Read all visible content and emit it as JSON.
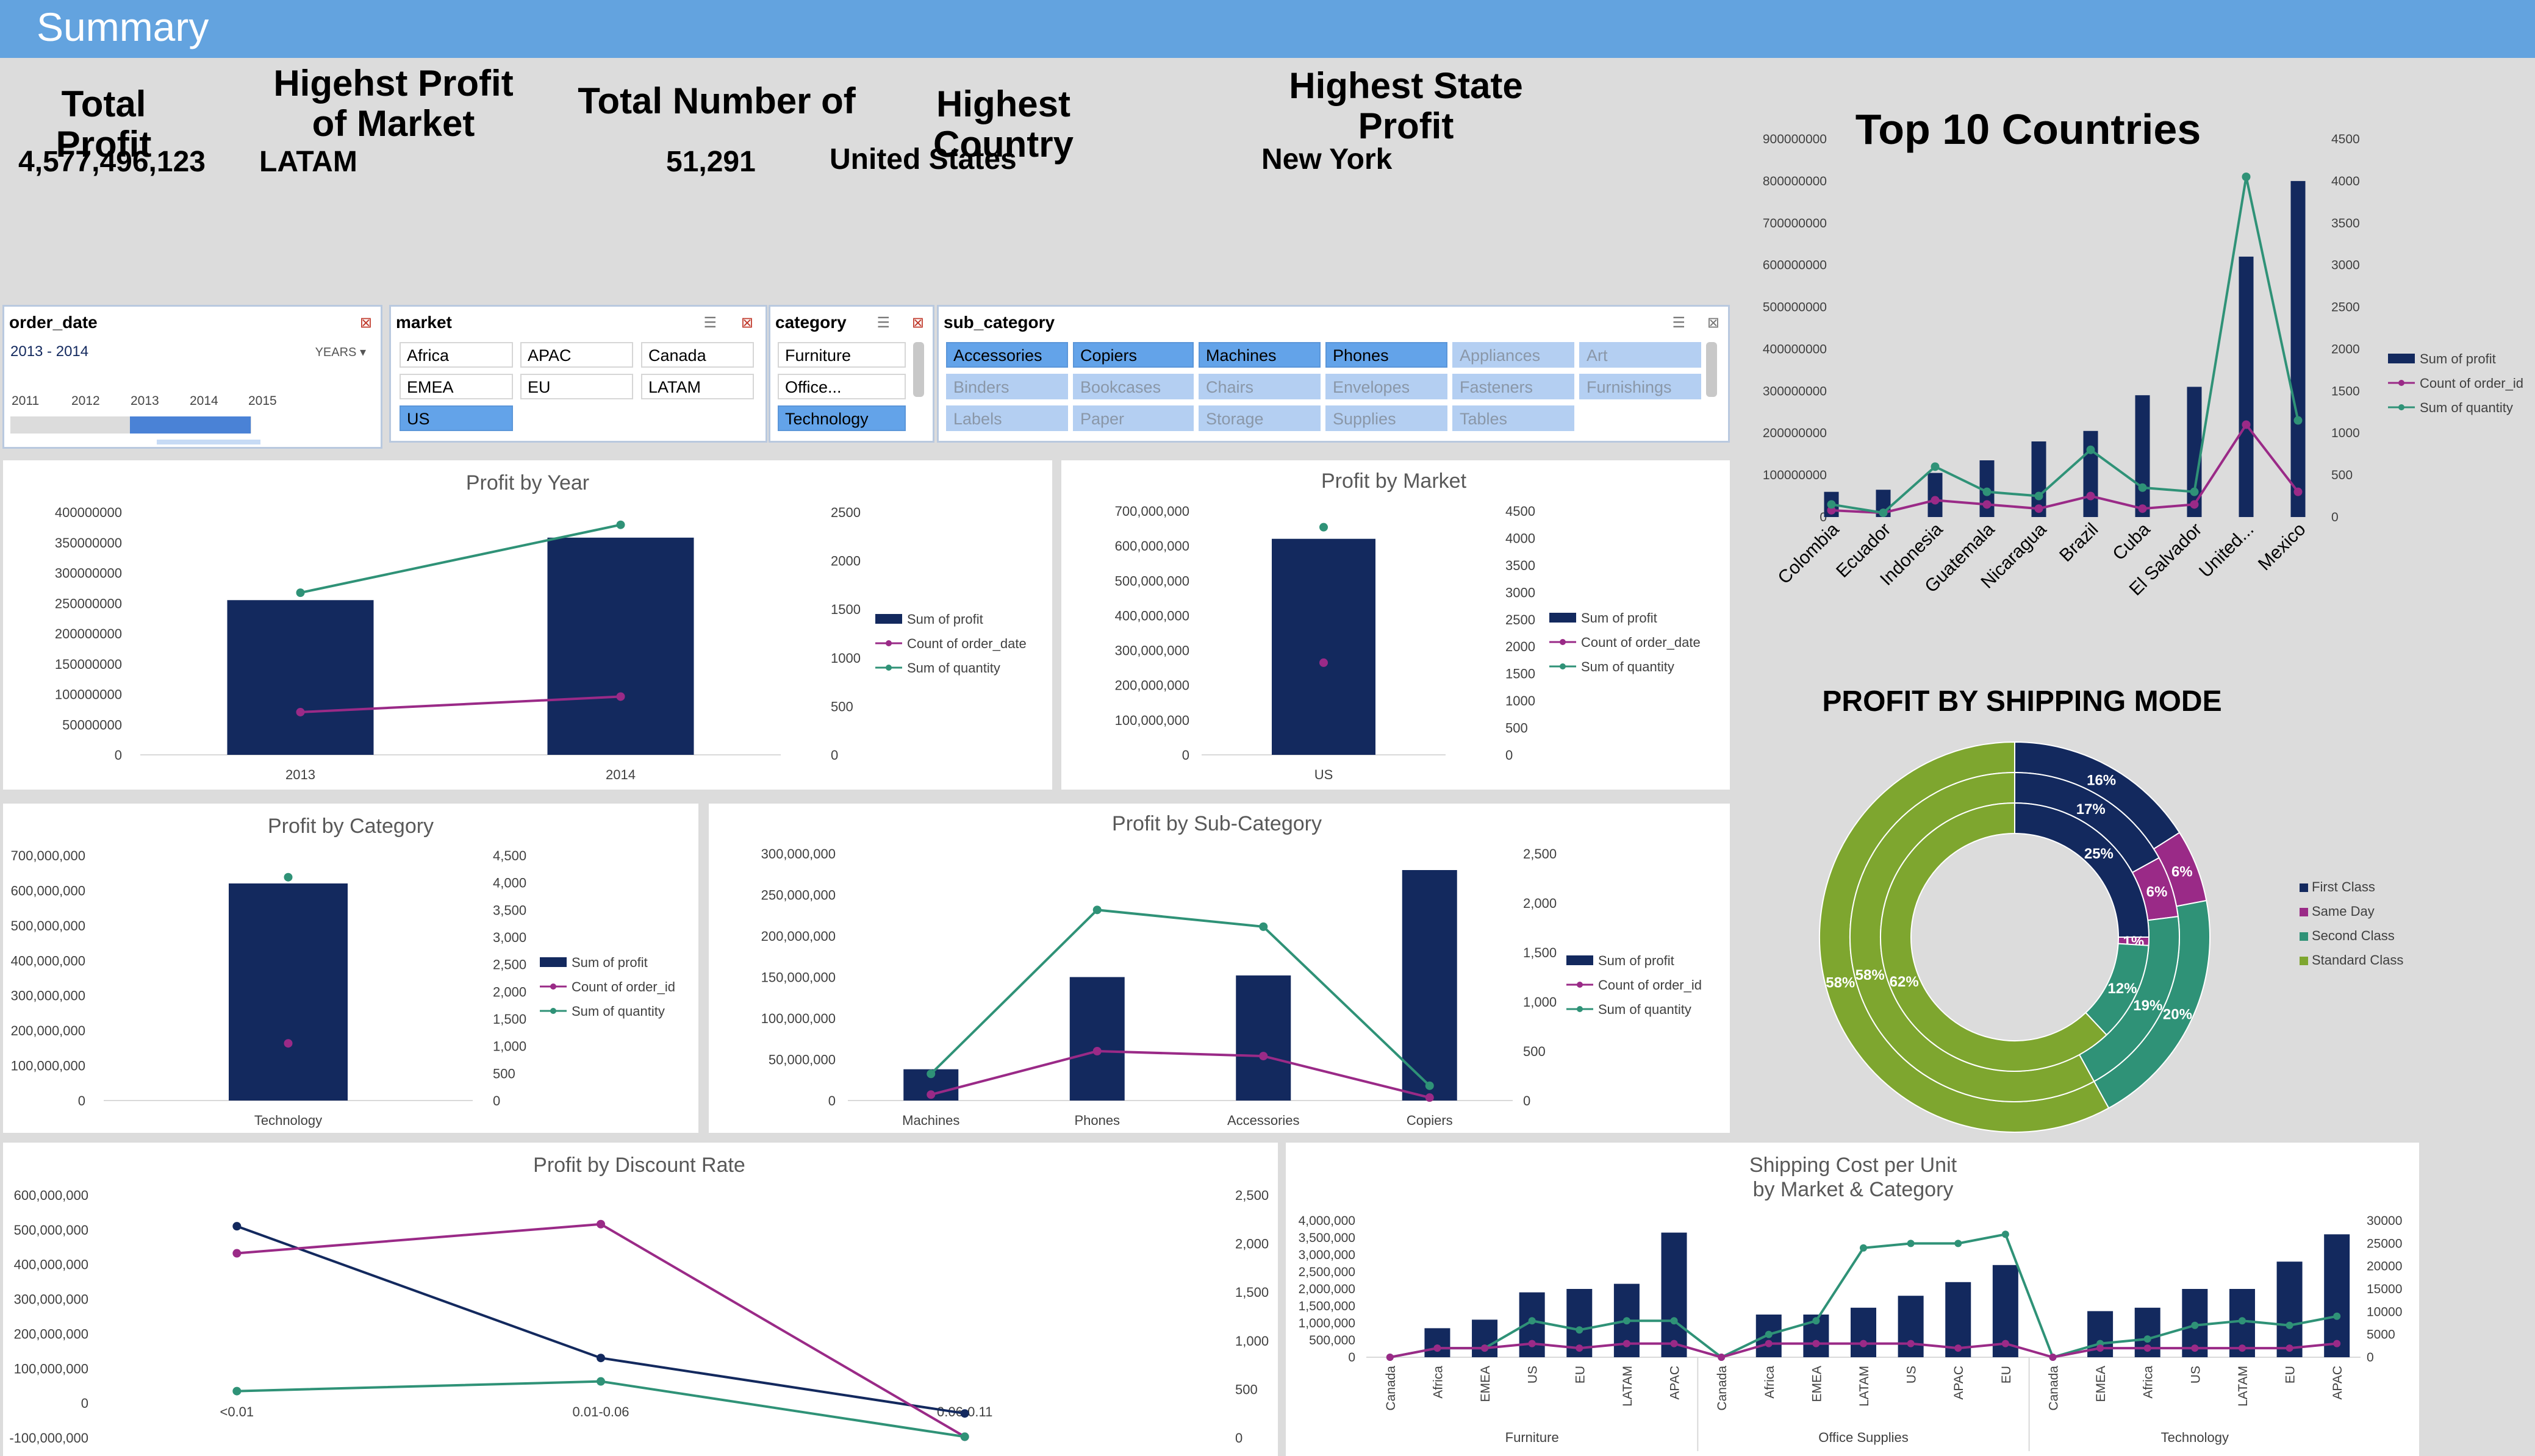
{
  "header": {
    "title": "Summary"
  },
  "kpis": {
    "total_profit_label": "Total Profit",
    "total_profit_value": "4,577,496,123",
    "market_label_1": "Higehst Profit",
    "market_label_2": "of Market",
    "market_value": "LATAM",
    "count_label": "Total Number of",
    "count_value": "51,291",
    "country_label": "Highest Country",
    "country_value": "United States",
    "state_label_1": "Highest State",
    "state_label_2": "Profit",
    "state_value": "New York"
  },
  "slicers": {
    "order_date": {
      "title": "order_date",
      "range": "2013 - 2014",
      "unit": "YEARS",
      "years": [
        "2011",
        "2012",
        "2013",
        "2014",
        "2015"
      ]
    },
    "market": {
      "title": "market",
      "items": [
        "Africa",
        "APAC",
        "Canada",
        "EMEA",
        "EU",
        "LATAM",
        "US"
      ],
      "selected": "US"
    },
    "category": {
      "title": "category",
      "items": [
        "Furniture",
        "Office...",
        "Technology"
      ],
      "selected": "Technology"
    },
    "sub_category": {
      "title": "sub_category",
      "items": [
        "Accessories",
        "Copiers",
        "Machines",
        "Phones",
        "Appliances",
        "Art",
        "Binders",
        "Bookcases",
        "Chairs",
        "Envelopes",
        "Fasteners",
        "Furnishings",
        "Labels",
        "Paper",
        "Storage",
        "Supplies",
        "Tables"
      ],
      "selected": [
        "Accessories",
        "Copiers",
        "Machines",
        "Phones"
      ]
    }
  },
  "legend_labels": {
    "profit": "Sum of profit",
    "count_date": "Count of order_date",
    "count_id": "Count of order_id",
    "quantity": "Sum of quantity"
  },
  "colors": {
    "profit": "#13295e",
    "count": "#9a2a87",
    "quantity": "#2f9277",
    "first": "#13295e",
    "same": "#9a2a87",
    "second": "#2f9277",
    "standard": "#7ea62f"
  },
  "chart_data": [
    {
      "id": "profit_by_year",
      "type": "bar",
      "title": "Profit by Year",
      "categories": [
        "2013",
        "2014"
      ],
      "series": [
        {
          "name": "Sum of profit",
          "values": [
            255000000,
            358000000
          ]
        },
        {
          "name": "Count of order_date",
          "values": [
            440,
            600
          ]
        },
        {
          "name": "Sum of quantity",
          "values": [
            1670,
            2370
          ]
        }
      ],
      "y_ticks": [
        "400000000",
        "350000000",
        "300000000",
        "250000000",
        "200000000",
        "150000000",
        "100000000",
        "50000000",
        "0"
      ],
      "y2_ticks": [
        "2500",
        "2000",
        "1500",
        "1000",
        "500",
        "0"
      ]
    },
    {
      "id": "profit_by_market",
      "type": "bar",
      "title": "Profit by Market",
      "categories": [
        "US"
      ],
      "series": [
        {
          "name": "Sum of profit",
          "values": [
            620000000
          ]
        },
        {
          "name": "Count of order_date",
          "values": [
            1700
          ]
        },
        {
          "name": "Sum of quantity",
          "values": [
            4200
          ]
        }
      ],
      "y_ticks": [
        "700,000,000",
        "600,000,000",
        "500,000,000",
        "400,000,000",
        "300,000,000",
        "200,000,000",
        "100,000,000",
        "0"
      ],
      "y2_ticks": [
        "4500",
        "4000",
        "3500",
        "3000",
        "2500",
        "2000",
        "1500",
        "1000",
        "500",
        "0"
      ]
    },
    {
      "id": "profit_by_category",
      "type": "bar",
      "title": "Profit by Category",
      "categories": [
        "Technology"
      ],
      "series": [
        {
          "name": "Sum of profit",
          "values": [
            620000000
          ]
        },
        {
          "name": "Count of order_id",
          "values": [
            1050
          ]
        },
        {
          "name": "Sum of quantity",
          "values": [
            4100
          ]
        }
      ],
      "y_ticks": [
        "700,000,000",
        "600,000,000",
        "500,000,000",
        "400,000,000",
        "300,000,000",
        "200,000,000",
        "100,000,000",
        "0"
      ],
      "y2_ticks": [
        "4,500",
        "4,000",
        "3,500",
        "3,000",
        "2,500",
        "2,000",
        "1,500",
        "1,000",
        "500",
        "0"
      ]
    },
    {
      "id": "profit_by_subcategory",
      "type": "bar",
      "title": "Profit by Sub-Category",
      "categories": [
        "Machines",
        "Phones",
        "Accessories",
        "Copiers"
      ],
      "series": [
        {
          "name": "Sum of profit",
          "values": [
            38000000,
            150000000,
            152000000,
            280000000
          ]
        },
        {
          "name": "Count of order_id",
          "values": [
            60,
            500,
            450,
            30
          ]
        },
        {
          "name": "Sum of quantity",
          "values": [
            270,
            1930,
            1760,
            150
          ]
        }
      ],
      "y_ticks": [
        "300,000,000",
        "250,000,000",
        "200,000,000",
        "150,000,000",
        "100,000,000",
        "50,000,000",
        "0"
      ],
      "y2_ticks": [
        "2,500",
        "2,000",
        "1,500",
        "1,000",
        "500",
        "0"
      ]
    },
    {
      "id": "profit_by_discount",
      "type": "line",
      "title": "Profit by Discount Rate",
      "categories": [
        "<0.01",
        "0.01-0.06",
        "0.06-0.11"
      ],
      "series": [
        {
          "values": [
            510000000,
            130000000,
            -30000000
          ]
        },
        {
          "values": [
            1900,
            2200,
            10
          ]
        },
        {
          "values": [
            480,
            580,
            10
          ]
        }
      ],
      "y_ticks": [
        "600,000,000",
        "500,000,000",
        "400,000,000",
        "300,000,000",
        "200,000,000",
        "100,000,000",
        "0",
        "-100,000,000"
      ],
      "y2_ticks": [
        "2,500",
        "2,000",
        "1,500",
        "1,000",
        "500",
        "0"
      ]
    },
    {
      "id": "shipping_cost",
      "type": "bar",
      "title_line1": "Shipping Cost per Unit",
      "title_line2": "by Market & Category",
      "groups": [
        {
          "name": "Furniture",
          "categories": [
            "Canada",
            "Africa",
            "EMEA",
            "US",
            "EU",
            "LATAM",
            "APAC"
          ]
        },
        {
          "name": "Office Supplies",
          "categories": [
            "Canada",
            "Africa",
            "EMEA",
            "LATAM",
            "US",
            "APAC",
            "EU"
          ]
        },
        {
          "name": "Technology",
          "categories": [
            "Canada",
            "EMEA",
            "Africa",
            "US",
            "LATAM",
            "EU",
            "APAC"
          ]
        }
      ],
      "series": [
        {
          "values": [
            0,
            850000,
            1100000,
            1900000,
            2000000,
            2150000,
            3650000,
            0,
            1250000,
            1250000,
            1450000,
            1800000,
            2200000,
            2700000,
            0,
            1350000,
            1450000,
            2000000,
            2000000,
            2800000,
            3600000
          ]
        },
        {
          "values": [
            0,
            2000,
            2000,
            8000,
            6000,
            8000,
            8000,
            0,
            5000,
            8000,
            24000,
            25000,
            25000,
            27000,
            0,
            3000,
            4000,
            7000,
            8000,
            7000,
            9000
          ]
        },
        {
          "values": [
            0,
            2000,
            2000,
            3000,
            2000,
            3000,
            3000,
            0,
            3000,
            3000,
            3000,
            3000,
            2000,
            3000,
            0,
            2000,
            2000,
            2000,
            2000,
            2000,
            3000
          ]
        }
      ],
      "y_ticks": [
        "4,000,000",
        "3,500,000",
        "3,000,000",
        "2,500,000",
        "2,000,000",
        "1,500,000",
        "1,000,000",
        "500,000",
        "0"
      ],
      "y2_ticks": [
        "30000",
        "25000",
        "20000",
        "15000",
        "10000",
        "5000",
        "0"
      ]
    },
    {
      "id": "top10_countries",
      "type": "bar",
      "title": "Top 10 Countries",
      "categories": [
        "Colombia",
        "Ecuador",
        "Indonesia",
        "Guatemala",
        "Nicaragua",
        "Brazil",
        "Cuba",
        "El Salvador",
        "United...",
        "Mexico"
      ],
      "series": [
        {
          "name": "Sum of profit",
          "values": [
            60000000,
            65000000,
            105000000,
            135000000,
            180000000,
            205000000,
            290000000,
            310000000,
            620000000,
            800000000
          ]
        },
        {
          "name": "Count of order_id",
          "values": [
            80,
            50,
            200,
            150,
            100,
            250,
            100,
            150,
            1100,
            300
          ]
        },
        {
          "name": "Sum of quantity",
          "values": [
            150,
            50,
            600,
            300,
            250,
            800,
            350,
            300,
            4050,
            1150
          ]
        }
      ],
      "y_ticks": [
        "900000000",
        "800000000",
        "700000000",
        "600000000",
        "500000000",
        "400000000",
        "300000000",
        "200000000",
        "100000000",
        "0"
      ],
      "y2_ticks": [
        "4500",
        "4000",
        "3500",
        "3000",
        "2500",
        "2000",
        "1500",
        "1000",
        "500",
        "0"
      ]
    },
    {
      "id": "profit_by_shipping_mode",
      "type": "pie",
      "title": "PROFIT BY SHIPPING MODE",
      "legend": [
        "First Class",
        "Same Day",
        "Second Class",
        "Standard Class"
      ],
      "rings": [
        [
          16,
          6,
          20,
          58
        ],
        [
          17,
          6,
          19,
          58
        ],
        [
          25,
          1,
          12,
          62
        ]
      ]
    }
  ]
}
